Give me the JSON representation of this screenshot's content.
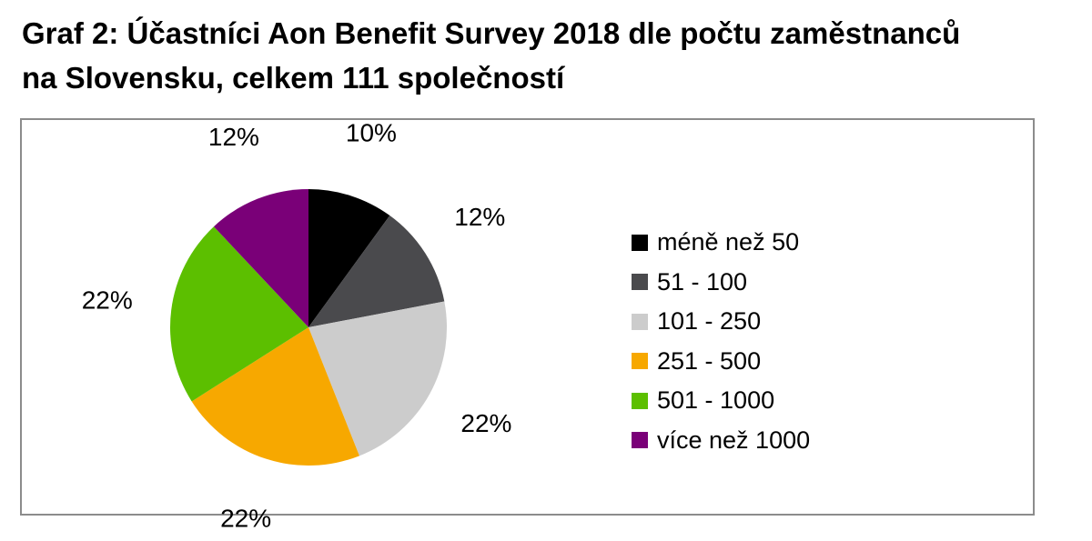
{
  "title": {
    "line1": "Graf 2: Účastníci Aon Benefit Survey 2018 dle počtu zaměstnanců",
    "line2": "na Slovensku, celkem 111 společností"
  },
  "chart_data": {
    "type": "pie",
    "start": "12 o'clock",
    "direction": "clockwise",
    "legend_position": "right",
    "categories": [
      "méně než 50",
      "51 - 100",
      "101 - 250",
      "251 - 500",
      "501 - 1000",
      "více než 1000"
    ],
    "values": [
      10,
      12,
      22,
      22,
      22,
      12
    ],
    "data_labels": [
      "10%",
      "12%",
      "22%",
      "22%",
      "22%",
      "12%"
    ],
    "colors": [
      "#000000",
      "#4a4a4d",
      "#cccccc",
      "#f7a800",
      "#5cbf00",
      "#7a0078"
    ]
  }
}
